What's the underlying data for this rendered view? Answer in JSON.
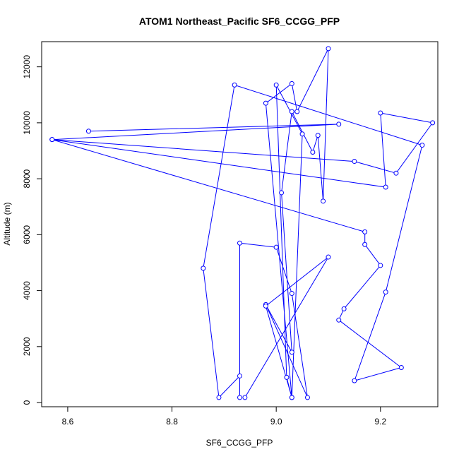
{
  "chart_data": {
    "type": "line",
    "title": "ATOM1 Northeast_Pacific SF6_CCGG_PFP",
    "xlabel": "SF6_CCGG_PFP",
    "ylabel": "Altitude (m)",
    "xlim": [
      8.55,
      9.31
    ],
    "ylim": [
      -150,
      12900
    ],
    "x_ticks": [
      8.6,
      8.8,
      9.0,
      9.2
    ],
    "x_tick_labels": [
      "8.6",
      "8.8",
      "9.0",
      "9.2"
    ],
    "y_ticks": [
      0,
      2000,
      4000,
      6000,
      8000,
      10000,
      12000
    ],
    "y_tick_labels": [
      "0",
      "2000",
      "4000",
      "6000",
      "8000",
      "10000",
      "12000"
    ],
    "grid": false,
    "series": [
      {
        "color": "#0000ff",
        "marker": "open-circle",
        "x": [
          8.64,
          9.12,
          8.57,
          9.21,
          9.2,
          9.3,
          9.23,
          9.15,
          8.57,
          9.17,
          9.17,
          9.2,
          9.13,
          9.12,
          9.24,
          9.15,
          9.21,
          9.28,
          8.92,
          8.86,
          8.89,
          8.93,
          8.93,
          8.93,
          9.0,
          9.03,
          9.06,
          8.98,
          9.03,
          9.01,
          9.03,
          9.07,
          9.08,
          9.09,
          9.1,
          9.04,
          9.03,
          8.98,
          9.03,
          9.05,
          9.0,
          9.02,
          9.03,
          8.98,
          9.1,
          8.94
        ],
        "y": [
          9700,
          9950,
          9400,
          7700,
          10350,
          10000,
          8200,
          8620,
          9400,
          6100,
          5650,
          4900,
          3350,
          2950,
          1250,
          780,
          3950,
          9200,
          11350,
          4800,
          180,
          950,
          180,
          5700,
          5550,
          3900,
          180,
          3500,
          1800,
          7500,
          10400,
          8950,
          9550,
          7200,
          12650,
          10400,
          11400,
          10700,
          180,
          9600,
          11350,
          900,
          180,
          3450,
          5200,
          180
        ]
      }
    ]
  }
}
